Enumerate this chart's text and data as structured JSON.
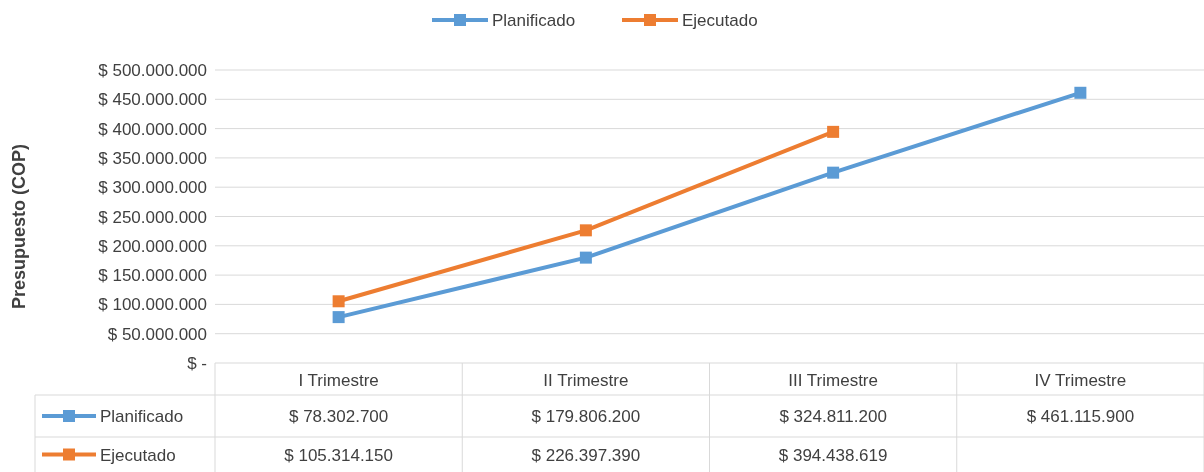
{
  "chart_data": {
    "type": "line",
    "ylabel": "Presupuesto (COP)",
    "categories": [
      "I Trimestre",
      "II Trimestre",
      "III Trimestre",
      "IV Trimestre"
    ],
    "series": [
      {
        "name": "Planificado",
        "color": "#5b9bd5",
        "values": [
          78302700,
          179806200,
          324811200,
          461115900
        ],
        "value_labels": [
          "$ 78.302.700",
          "$ 179.806.200",
          "$ 324.811.200",
          "$ 461.115.900"
        ]
      },
      {
        "name": "Ejecutado",
        "color": "#ed7d31",
        "values": [
          105314150,
          226397390,
          394438619,
          null
        ],
        "value_labels": [
          "$ 105.314.150",
          "$ 226.397.390",
          "$ 394.438.619",
          null
        ]
      }
    ],
    "ylim": [
      0,
      500000000
    ],
    "yticks": [
      {
        "value": 0,
        "label": "$ -"
      },
      {
        "value": 50000000,
        "label": "$ 50.000.000"
      },
      {
        "value": 100000000,
        "label": "$ 100.000.000"
      },
      {
        "value": 150000000,
        "label": "$ 150.000.000"
      },
      {
        "value": 200000000,
        "label": "$ 200.000.000"
      },
      {
        "value": 250000000,
        "label": "$ 250.000.000"
      },
      {
        "value": 300000000,
        "label": "$ 300.000.000"
      },
      {
        "value": 350000000,
        "label": "$ 350.000.000"
      },
      {
        "value": 400000000,
        "label": "$ 400.000.000"
      },
      {
        "value": 450000000,
        "label": "$ 450.000.000"
      },
      {
        "value": 500000000,
        "label": "$ 500.000.000"
      }
    ],
    "grid": "y",
    "legend": "top",
    "marker": "square",
    "line_style": "solid"
  }
}
